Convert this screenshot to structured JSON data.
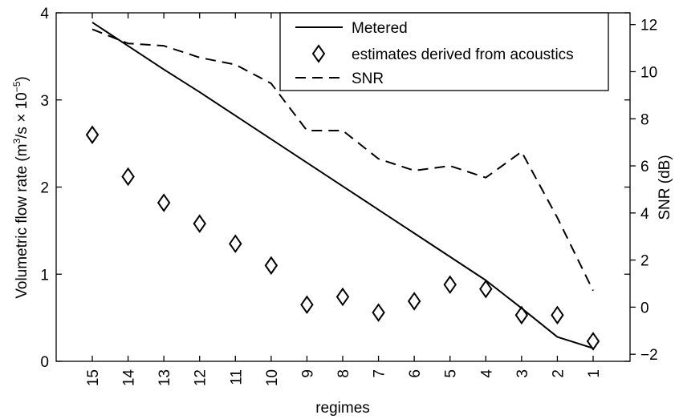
{
  "chart_data": {
    "type": "line",
    "title": "",
    "xlabel": "regimes",
    "categories": [
      "15",
      "14",
      "13",
      "12",
      "11",
      "10",
      "9",
      "8",
      "7",
      "6",
      "5",
      "4",
      "3",
      "2",
      "1"
    ],
    "y_left": {
      "label_parts": [
        "Volumetric flow rate (m",
        "3",
        "/s × 10",
        "−5",
        ")"
      ],
      "lim": [
        0,
        4
      ],
      "ticks": [
        "0",
        "1",
        "2",
        "3",
        "4"
      ]
    },
    "y_right": {
      "label": "SNR (dB)",
      "lim": [
        -2.3,
        12.5
      ],
      "ticks": [
        "−2",
        "0",
        "2",
        "4",
        "6",
        "8",
        "10",
        "12"
      ]
    },
    "series": [
      {
        "name": "Metered",
        "axis": "left",
        "style": "solid",
        "values": [
          3.89,
          3.62,
          3.35,
          3.09,
          2.82,
          2.55,
          2.28,
          2.01,
          1.74,
          1.47,
          1.2,
          0.93,
          0.61,
          0.28,
          0.15
        ]
      },
      {
        "name": "estimates derived from acoustics",
        "axis": "left",
        "style": "diamond-markers",
        "values": [
          2.6,
          2.12,
          1.82,
          1.58,
          1.35,
          1.1,
          0.65,
          0.74,
          0.56,
          0.69,
          0.88,
          0.83,
          0.53,
          0.53,
          0.23
        ]
      },
      {
        "name": "SNR",
        "axis": "right",
        "style": "dashed",
        "values": [
          11.8,
          11.2,
          11.1,
          10.6,
          10.3,
          9.5,
          7.5,
          7.5,
          6.3,
          5.8,
          6.0,
          5.5,
          6.6,
          3.8,
          0.7
        ]
      }
    ],
    "legend": {
      "position": "top-right"
    },
    "grid": false
  }
}
